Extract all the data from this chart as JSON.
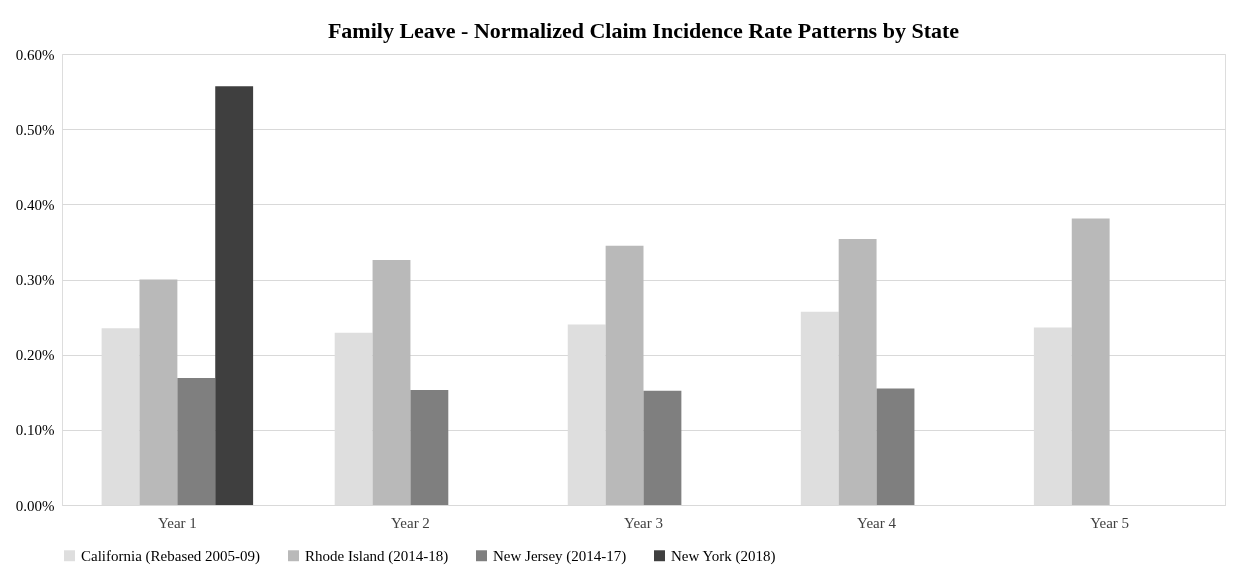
{
  "chart_data": {
    "type": "bar",
    "title": "Family Leave - Normalized Claim Incidence Rate Patterns by State",
    "categories": [
      "Year 1",
      "Year 2",
      "Year 3",
      "Year 4",
      "Year 5"
    ],
    "series": [
      {
        "name": "California (Rebased 2005-09)",
        "color": "#dedede",
        "values": [
          0.235,
          0.229,
          0.24,
          0.257,
          0.236
        ]
      },
      {
        "name": "Rhode Island (2014-18)",
        "color": "#b9b9b9",
        "values": [
          0.3,
          0.326,
          0.345,
          0.354,
          0.381
        ]
      },
      {
        "name": "New Jersey (2014-17)",
        "color": "#7f7f7f",
        "values": [
          0.169,
          0.153,
          0.152,
          0.155,
          null
        ]
      },
      {
        "name": "New York (2018)",
        "color": "#3f3f3f",
        "values": [
          0.557,
          null,
          null,
          null,
          null
        ]
      }
    ],
    "ylim": [
      0,
      0.6
    ],
    "yticks": [
      {
        "value": 0,
        "label": "0.00%"
      },
      {
        "value": 0.1,
        "label": "0.10%"
      },
      {
        "value": 0.2,
        "label": "0.20%"
      },
      {
        "value": 0.3,
        "label": "0.30%"
      },
      {
        "value": 0.4,
        "label": "0.40%"
      },
      {
        "value": 0.5,
        "label": "0.50%"
      },
      {
        "value": 0.6,
        "label": "0.60%"
      }
    ],
    "grid": "y",
    "legend": "bottom"
  }
}
